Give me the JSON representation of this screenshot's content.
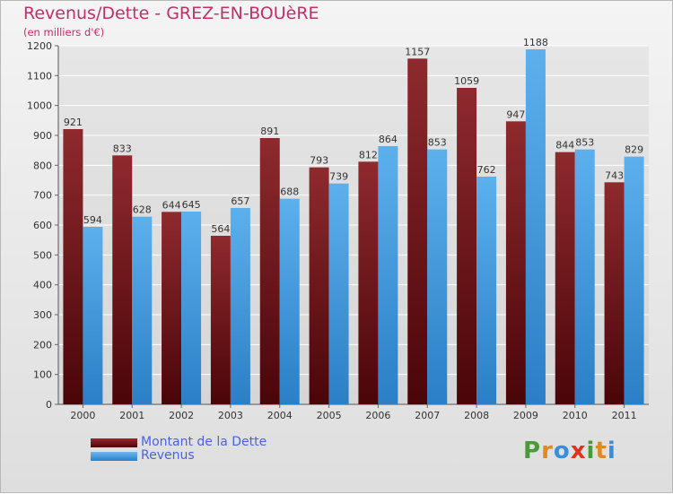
{
  "title": "Revenus/Dette - GREZ-EN-BOUèRE",
  "subtitle": "(en milliers d'€)",
  "legend": [
    {
      "label": "Montant de la Dette",
      "color": "#7a1419"
    },
    {
      "label": "Revenus",
      "color": "#3e9be0"
    }
  ],
  "logo": {
    "text": "Proxiti",
    "letters": [
      {
        "ch": "P",
        "color": "#4a9a3a"
      },
      {
        "ch": "r",
        "color": "#e08a1e"
      },
      {
        "ch": "o",
        "color": "#3a8fd6"
      },
      {
        "ch": "x",
        "color": "#d9361e"
      },
      {
        "ch": "i",
        "color": "#4a9a3a"
      },
      {
        "ch": "t",
        "color": "#e08a1e"
      },
      {
        "ch": "i",
        "color": "#3a8fd6"
      }
    ]
  },
  "chart_data": {
    "type": "bar",
    "categories": [
      "2000",
      "2001",
      "2002",
      "2003",
      "2004",
      "2005",
      "2006",
      "2007",
      "2008",
      "2009",
      "2010",
      "2011"
    ],
    "series": [
      {
        "name": "Montant de la Dette",
        "color": "#7a1419",
        "values": [
          921,
          833,
          644,
          564,
          891,
          793,
          812,
          1157,
          1059,
          947,
          844,
          743
        ]
      },
      {
        "name": "Revenus",
        "color": "#3e9be0",
        "values": [
          594,
          628,
          645,
          657,
          688,
          739,
          864,
          853,
          762,
          1188,
          853,
          829
        ]
      }
    ],
    "title": "Revenus/Dette - GREZ-EN-BOUèRE",
    "ylabel": "(en milliers d'€)",
    "ylim": [
      0,
      1200
    ],
    "yticks": [
      0,
      100,
      200,
      300,
      400,
      500,
      600,
      700,
      800,
      900,
      1000,
      1100,
      1200
    ],
    "grid": true,
    "legend_position": "bottom-left"
  }
}
